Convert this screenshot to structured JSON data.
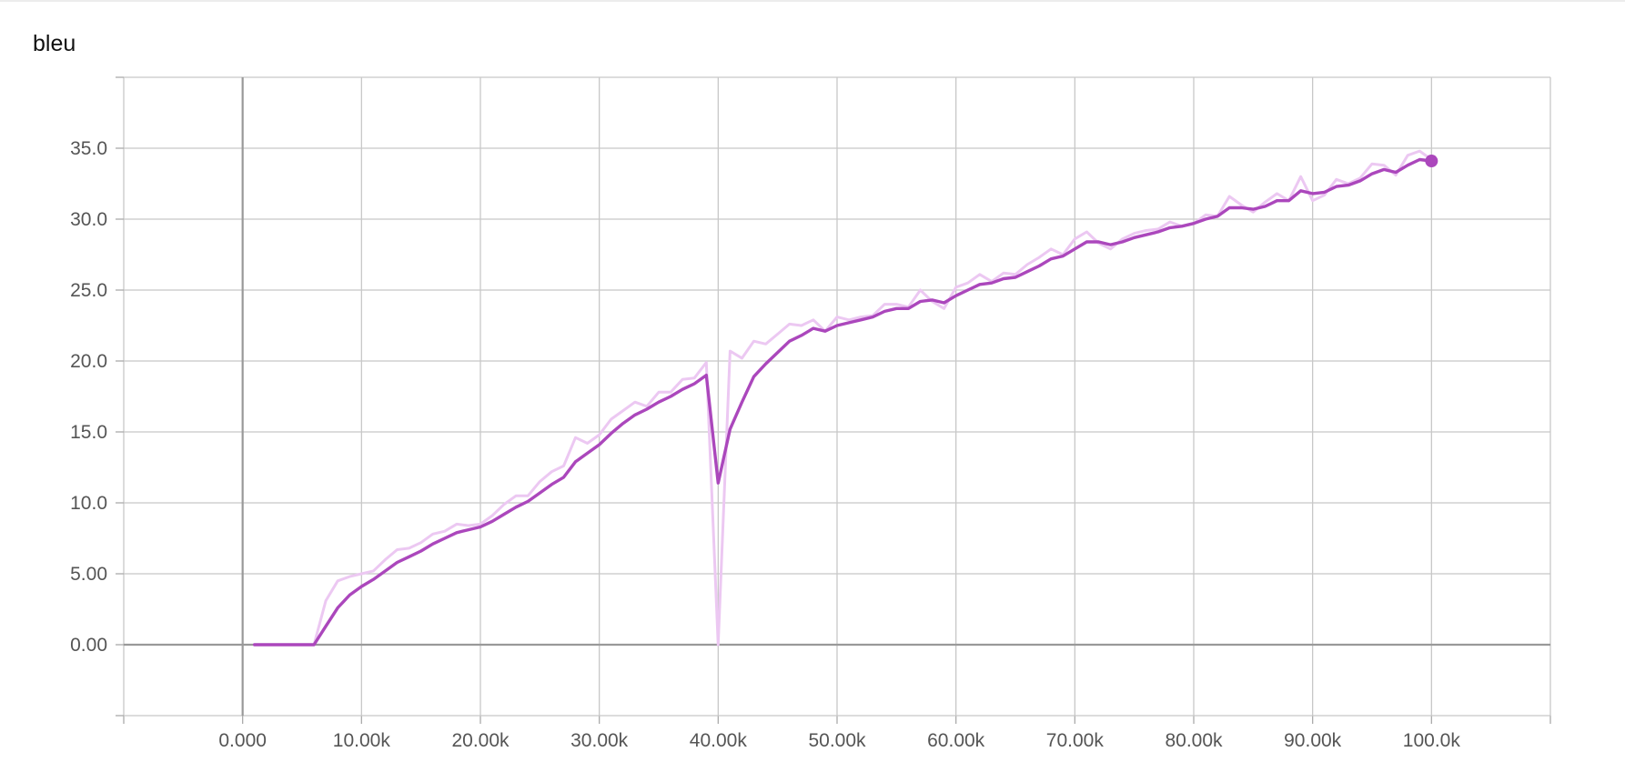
{
  "chart_data": {
    "type": "line",
    "title": "bleu",
    "xlabel": "",
    "ylabel": "",
    "xlim": [
      -10000,
      110000
    ],
    "ylim": [
      -5,
      40
    ],
    "x_ticks": [
      0,
      10000,
      20000,
      30000,
      40000,
      50000,
      60000,
      70000,
      80000,
      90000,
      100000
    ],
    "x_tick_labels": [
      "0.000",
      "10.00k",
      "20.00k",
      "30.00k",
      "40.00k",
      "50.00k",
      "60.00k",
      "70.00k",
      "80.00k",
      "90.00k",
      "100.0k"
    ],
    "y_ticks": [
      0,
      5,
      10,
      15,
      20,
      25,
      30,
      35
    ],
    "y_tick_labels": [
      "0.00",
      "5.00",
      "10.0",
      "15.0",
      "20.0",
      "25.0",
      "30.0",
      "35.0"
    ],
    "x_grid_extra": [
      -10000,
      110000
    ],
    "y_grid_extra": [
      -5,
      40
    ],
    "grid": true,
    "colors": {
      "smoothed": "#ab47bc",
      "raw": "#ecc8f2",
      "axis": "#999999",
      "grid": "#c8c8c8"
    },
    "series": [
      {
        "role": "raw",
        "x": [
          1000,
          2000,
          3000,
          4000,
          5000,
          6000,
          7000,
          8000,
          9000,
          10000,
          11000,
          12000,
          13000,
          14000,
          15000,
          16000,
          17000,
          18000,
          19000,
          20000,
          21000,
          22000,
          23000,
          24000,
          25000,
          26000,
          27000,
          28000,
          29000,
          30000,
          31000,
          32000,
          33000,
          34000,
          35000,
          36000,
          37000,
          38000,
          39000,
          40000,
          41000,
          42000,
          43000,
          44000,
          45000,
          46000,
          47000,
          48000,
          49000,
          50000,
          51000,
          52000,
          53000,
          54000,
          55000,
          56000,
          57000,
          58000,
          59000,
          60000,
          61000,
          62000,
          63000,
          64000,
          65000,
          66000,
          67000,
          68000,
          69000,
          70000,
          71000,
          72000,
          73000,
          74000,
          75000,
          76000,
          77000,
          78000,
          79000,
          80000,
          81000,
          82000,
          83000,
          84000,
          85000,
          86000,
          87000,
          88000,
          89000,
          90000,
          91000,
          92000,
          93000,
          94000,
          95000,
          96000,
          97000,
          98000,
          99000,
          100000
        ],
        "values": [
          0,
          0,
          0,
          0,
          0,
          0,
          3.1,
          4.5,
          4.8,
          5.0,
          5.2,
          6.0,
          6.7,
          6.8,
          7.2,
          7.8,
          8.0,
          8.5,
          8.4,
          8.5,
          9.1,
          9.9,
          10.5,
          10.5,
          11.5,
          12.2,
          12.6,
          14.6,
          14.2,
          14.8,
          15.9,
          16.5,
          17.1,
          16.8,
          17.8,
          17.8,
          18.7,
          18.8,
          19.9,
          0,
          20.7,
          20.2,
          21.4,
          21.2,
          21.9,
          22.6,
          22.5,
          22.9,
          22.1,
          23.1,
          22.9,
          23.1,
          23.2,
          24.0,
          24.0,
          23.8,
          25.0,
          24.2,
          23.7,
          25.2,
          25.5,
          26.1,
          25.6,
          26.2,
          26.1,
          26.8,
          27.3,
          27.9,
          27.5,
          28.6,
          29.1,
          28.3,
          27.9,
          28.6,
          29.0,
          29.2,
          29.3,
          29.8,
          29.5,
          29.7,
          30.3,
          30.2,
          31.6,
          31.0,
          30.5,
          31.2,
          31.8,
          31.3,
          33.0,
          31.3,
          31.7,
          32.8,
          32.5,
          32.9,
          33.9,
          33.8,
          33.1,
          34.5,
          34.8,
          34.2
        ]
      },
      {
        "role": "smoothed",
        "x": [
          1000,
          2000,
          3000,
          4000,
          5000,
          6000,
          7000,
          8000,
          9000,
          10000,
          11000,
          12000,
          13000,
          14000,
          15000,
          16000,
          17000,
          18000,
          19000,
          20000,
          21000,
          22000,
          23000,
          24000,
          25000,
          26000,
          27000,
          28000,
          29000,
          30000,
          31000,
          32000,
          33000,
          34000,
          35000,
          36000,
          37000,
          38000,
          39000,
          40000,
          41000,
          42000,
          43000,
          44000,
          45000,
          46000,
          47000,
          48000,
          49000,
          50000,
          51000,
          52000,
          53000,
          54000,
          55000,
          56000,
          57000,
          58000,
          59000,
          60000,
          61000,
          62000,
          63000,
          64000,
          65000,
          66000,
          67000,
          68000,
          69000,
          70000,
          71000,
          72000,
          73000,
          74000,
          75000,
          76000,
          77000,
          78000,
          79000,
          80000,
          81000,
          82000,
          83000,
          84000,
          85000,
          86000,
          87000,
          88000,
          89000,
          90000,
          91000,
          92000,
          93000,
          94000,
          95000,
          96000,
          97000,
          98000,
          99000,
          100000
        ],
        "values": [
          0,
          0,
          0,
          0,
          0,
          0,
          1.3,
          2.6,
          3.5,
          4.1,
          4.6,
          5.2,
          5.8,
          6.2,
          6.6,
          7.1,
          7.5,
          7.9,
          8.1,
          8.3,
          8.7,
          9.2,
          9.7,
          10.1,
          10.7,
          11.3,
          11.8,
          12.9,
          13.5,
          14.1,
          14.9,
          15.6,
          16.2,
          16.6,
          17.1,
          17.5,
          18.0,
          18.4,
          19.0,
          11.4,
          15.2,
          17.1,
          18.9,
          19.8,
          20.6,
          21.4,
          21.8,
          22.3,
          22.1,
          22.5,
          22.7,
          22.9,
          23.1,
          23.5,
          23.7,
          23.7,
          24.2,
          24.3,
          24.1,
          24.6,
          25.0,
          25.4,
          25.5,
          25.8,
          25.9,
          26.3,
          26.7,
          27.2,
          27.4,
          27.9,
          28.4,
          28.4,
          28.2,
          28.4,
          28.7,
          28.9,
          29.1,
          29.4,
          29.5,
          29.7,
          30.0,
          30.2,
          30.8,
          30.8,
          30.7,
          30.9,
          31.3,
          31.3,
          32.0,
          31.8,
          31.9,
          32.3,
          32.4,
          32.7,
          33.2,
          33.5,
          33.3,
          33.8,
          34.2,
          34.1
        ]
      }
    ]
  }
}
